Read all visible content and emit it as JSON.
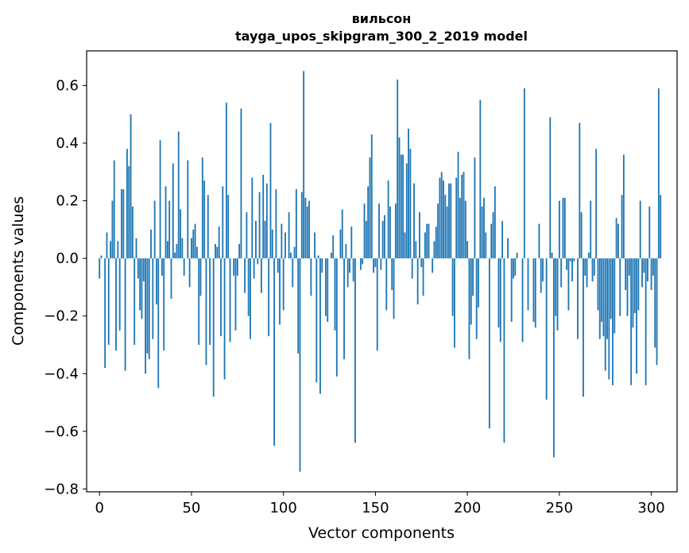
{
  "chart_data": {
    "type": "bar",
    "title": "вильсон",
    "subtitle": "tayga_upos_skipgram_300_2_2019 model",
    "xlabel": "Vector components",
    "ylabel": "Components values",
    "xlim": [
      -7,
      314
    ],
    "ylim": [
      -0.81,
      0.72
    ],
    "xticks": [
      0,
      50,
      100,
      150,
      200,
      250,
      300
    ],
    "yticks": [
      -0.8,
      -0.6,
      -0.4,
      -0.2,
      0.0,
      0.2,
      0.4,
      0.6
    ],
    "ytick_labels": [
      "−0.8",
      "−0.6",
      "−0.4",
      "−0.2",
      "0.0",
      "0.2",
      "0.4",
      "0.6"
    ],
    "xtick_labels": [
      "0",
      "50",
      "100",
      "150",
      "200",
      "250",
      "300"
    ],
    "bar_color": "#1f77b4",
    "grid": false,
    "values": [
      -0.07,
      0.01,
      0.0,
      -0.38,
      0.09,
      -0.3,
      0.06,
      0.2,
      0.34,
      -0.32,
      0.06,
      -0.25,
      0.24,
      0.24,
      -0.39,
      0.38,
      0.32,
      0.5,
      0.18,
      -0.3,
      0.07,
      -0.07,
      -0.18,
      -0.21,
      -0.08,
      -0.4,
      -0.33,
      -0.35,
      0.1,
      -0.28,
      0.2,
      -0.16,
      -0.45,
      0.41,
      -0.06,
      -0.32,
      0.25,
      0.06,
      0.2,
      -0.14,
      0.33,
      0.02,
      0.05,
      0.44,
      0.17,
      0.07,
      -0.06,
      0.0,
      0.34,
      -0.1,
      0.07,
      0.1,
      0.12,
      0.04,
      -0.3,
      -0.13,
      0.35,
      0.27,
      -0.37,
      0.22,
      -0.3,
      0.0,
      -0.48,
      0.05,
      0.04,
      0.11,
      -0.27,
      0.25,
      -0.42,
      0.54,
      0.22,
      -0.29,
      0.0,
      -0.06,
      -0.25,
      -0.06,
      0.05,
      0.52,
      0.0,
      -0.12,
      0.16,
      -0.2,
      -0.28,
      0.28,
      -0.07,
      0.13,
      -0.02,
      0.23,
      -0.12,
      0.29,
      0.13,
      0.26,
      -0.27,
      0.47,
      0.1,
      -0.65,
      0.24,
      -0.05,
      -0.23,
      0.12,
      -0.18,
      0.09,
      0.0,
      0.16,
      0.02,
      -0.1,
      0.04,
      0.24,
      -0.33,
      -0.74,
      0.23,
      0.65,
      0.21,
      0.18,
      0.2,
      -0.13,
      0.0,
      0.09,
      -0.43,
      0.01,
      -0.47,
      -0.05,
      0.0,
      -0.2,
      -0.22,
      0.0,
      0.02,
      0.08,
      -0.25,
      -0.41,
      0.0,
      0.1,
      0.17,
      -0.35,
      0.05,
      -0.1,
      -0.05,
      0.11,
      -0.08,
      -0.64,
      0.0,
      0.0,
      -0.04,
      -0.02,
      0.19,
      0.13,
      0.25,
      0.35,
      0.43,
      -0.05,
      -0.03,
      -0.32,
      0.19,
      -0.04,
      0.13,
      0.15,
      -0.18,
      0.27,
      0.18,
      -0.11,
      -0.21,
      0.19,
      0.62,
      0.42,
      0.36,
      0.36,
      0.09,
      0.33,
      0.45,
      0.38,
      -0.07,
      0.26,
      0.06,
      -0.16,
      0.16,
      -0.03,
      -0.13,
      0.09,
      0.12,
      0.12,
      0.0,
      -0.05,
      0.06,
      0.11,
      0.19,
      0.28,
      0.3,
      0.27,
      0.22,
      0.18,
      0.26,
      0.26,
      -0.2,
      -0.31,
      0.28,
      0.37,
      0.21,
      0.29,
      0.3,
      0.2,
      0.06,
      -0.35,
      -0.23,
      -0.13,
      0.35,
      -0.28,
      -0.17,
      0.55,
      0.18,
      0.21,
      0.09,
      0.0,
      -0.59,
      0.12,
      0.16,
      0.25,
      0.0,
      -0.24,
      -0.29,
      0.13,
      -0.64,
      0.0,
      0.07,
      0.0,
      -0.22,
      -0.07,
      -0.06,
      0.02,
      0.0,
      0.0,
      -0.29,
      0.59,
      0.0,
      -0.18,
      0.0,
      0.0,
      -0.22,
      -0.24,
      0.0,
      0.12,
      -0.12,
      -0.08,
      0.0,
      -0.49,
      0.0,
      0.49,
      0.02,
      -0.69,
      -0.2,
      -0.25,
      0.2,
      -0.1,
      0.21,
      0.21,
      -0.04,
      -0.18,
      -0.01,
      -0.08,
      -0.01,
      0.0,
      -0.28,
      0.47,
      0.16,
      -0.48,
      -0.06,
      -0.1,
      0.02,
      0.2,
      -0.08,
      -0.06,
      0.38,
      -0.18,
      -0.28,
      -0.22,
      -0.27,
      -0.39,
      -0.28,
      -0.42,
      -0.21,
      -0.44,
      -0.26,
      0.14,
      0.12,
      -0.2,
      0.22,
      0.36,
      -0.11,
      -0.2,
      -0.06,
      -0.44,
      -0.24,
      -0.19,
      -0.4,
      -0.18,
      0.2,
      -0.1,
      -0.05,
      -0.44,
      -0.08,
      0.18,
      -0.11,
      -0.06,
      -0.31,
      -0.37,
      0.59,
      0.22,
      0.0
    ]
  }
}
